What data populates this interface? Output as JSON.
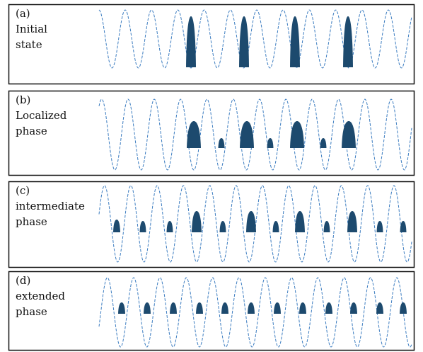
{
  "panels": [
    {
      "label": "(a)",
      "lines": [
        "Initial",
        "state"
      ]
    },
    {
      "label": "(b)",
      "lines": [
        "Localized",
        "phase"
      ]
    },
    {
      "label": "(c)",
      "lines": [
        "intermediate",
        "phase"
      ]
    },
    {
      "label": "(d)",
      "lines": [
        "extended",
        "phase"
      ]
    }
  ]
}
